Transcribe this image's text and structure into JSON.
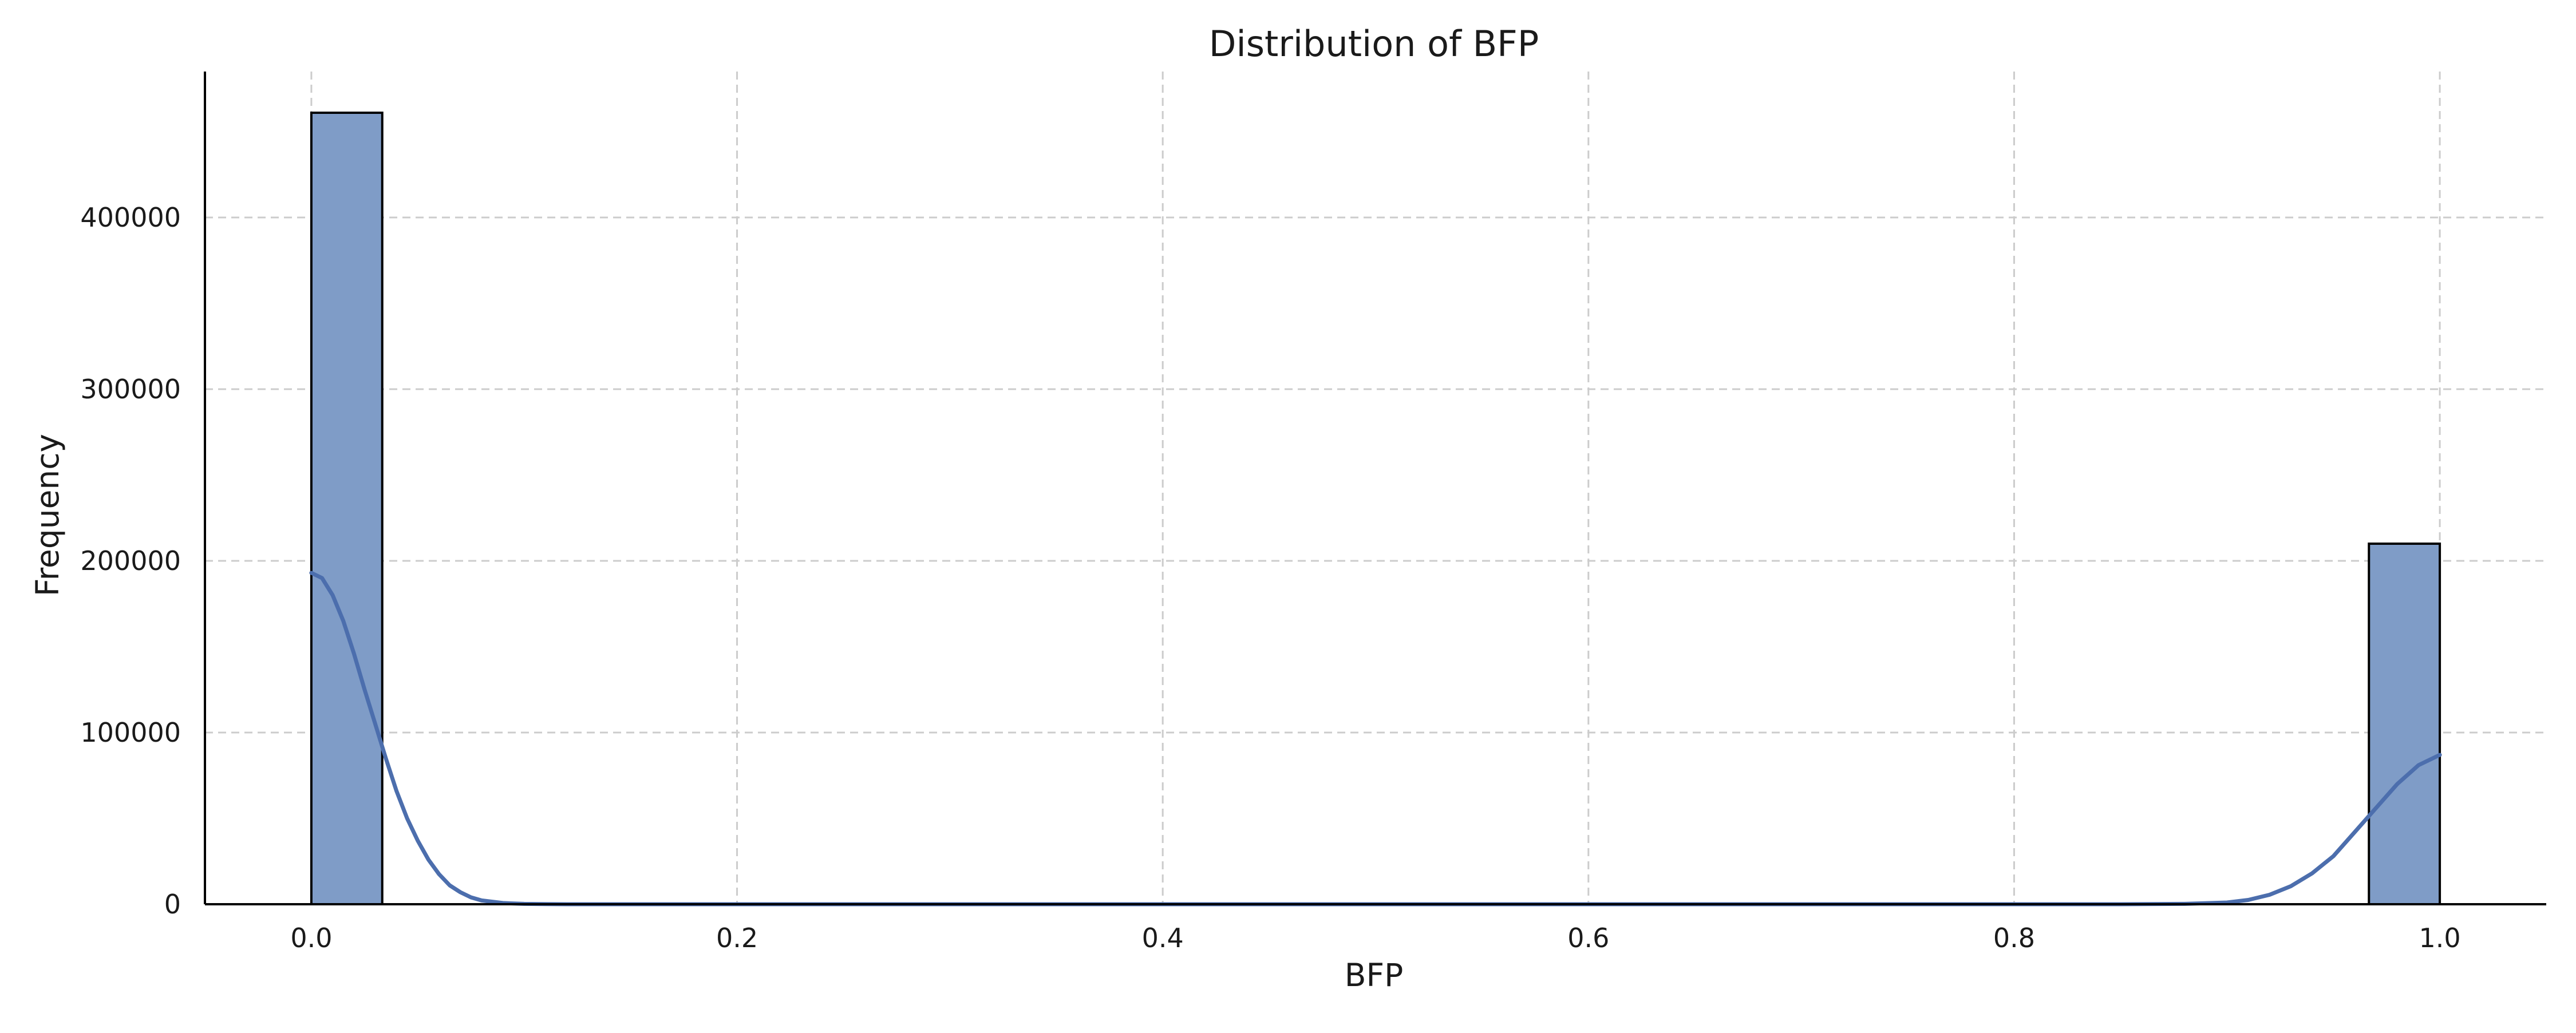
{
  "chart_data": {
    "type": "histogram",
    "title": "Distribution of BFP",
    "xlabel": "BFP",
    "ylabel": "Frequency",
    "xlim": [
      -0.05,
      1.05
    ],
    "ylim": [
      0,
      485000
    ],
    "x_ticks": [
      0.0,
      0.2,
      0.4,
      0.6,
      0.8,
      1.0
    ],
    "x_tick_labels": [
      "0.0",
      "0.2",
      "0.4",
      "0.6",
      "0.8",
      "1.0"
    ],
    "y_ticks": [
      0,
      100000,
      200000,
      300000,
      400000
    ],
    "y_tick_labels": [
      "0",
      "100000",
      "200000",
      "300000",
      "400000"
    ],
    "grid": true,
    "bins": [
      {
        "x0": 0.0,
        "x1": 0.0333,
        "count": 461000
      },
      {
        "x0": 0.9667,
        "x1": 1.0,
        "count": 210000
      }
    ],
    "kde": {
      "x": [
        0.0,
        0.005,
        0.01,
        0.015,
        0.02,
        0.025,
        0.03,
        0.035,
        0.04,
        0.045,
        0.05,
        0.055,
        0.06,
        0.065,
        0.07,
        0.075,
        0.08,
        0.09,
        0.1,
        0.11,
        0.12,
        0.15,
        0.3,
        0.5,
        0.7,
        0.85,
        0.88,
        0.9,
        0.91,
        0.92,
        0.93,
        0.94,
        0.95,
        0.96,
        0.97,
        0.98,
        0.99,
        1.0
      ],
      "y": [
        193000,
        190000,
        180000,
        165000,
        146000,
        125000,
        105000,
        85000,
        66000,
        50000,
        37000,
        26000,
        17500,
        11000,
        7000,
        4000,
        2200,
        700,
        200,
        50,
        10,
        0,
        0,
        0,
        0,
        0,
        200,
        1000,
        2500,
        5500,
        10500,
        18000,
        28000,
        42000,
        56000,
        70000,
        81000,
        87000
      ]
    },
    "colors": {
      "bar_fill": "#7f9cc7",
      "bar_edge": "#000000",
      "kde_line": "#4c6ead",
      "grid": "#cccccc",
      "axis": "#000000"
    }
  }
}
